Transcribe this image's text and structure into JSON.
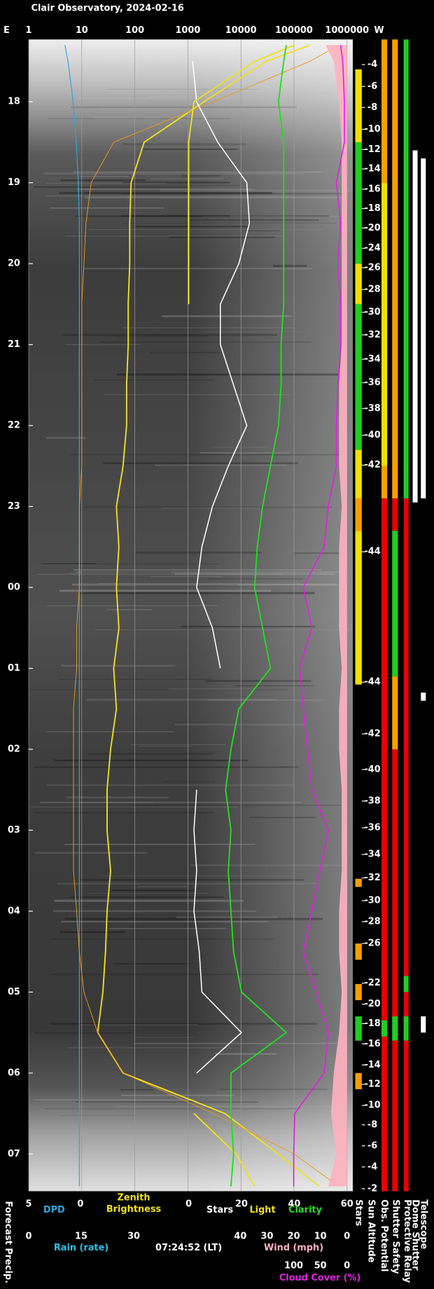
{
  "chart_data": {
    "type": "keogram",
    "title": "Clair Observatory, 2024-02-16",
    "east_label": "E",
    "west_label": "W",
    "timestamp": "07:24:52 (LT)",
    "forecast_precip_label": "Forecast Precip.",
    "ylim": [
      17.23,
      31.46
    ],
    "yticks": [
      18,
      19,
      20,
      21,
      22,
      23,
      {
        "value": 24,
        "label": "00"
      },
      {
        "value": 25,
        "label": "01"
      },
      {
        "value": 26,
        "label": "02"
      },
      {
        "value": 27,
        "label": "03"
      },
      {
        "value": 28,
        "label": "04"
      },
      {
        "value": 29,
        "label": "05"
      },
      {
        "value": 30,
        "label": "06"
      },
      {
        "value": 31,
        "label": "07"
      }
    ],
    "axes": {
      "top": {
        "log": true,
        "xlim": [
          1,
          1000000
        ],
        "xticks": [
          1,
          10,
          100,
          1000,
          10000,
          100000,
          1000000
        ],
        "grid": true
      },
      "dpd": {
        "xlim": [
          5,
          0
        ],
        "xticks": [
          5,
          0
        ]
      },
      "linear": {
        "xlim": [
          0,
          60
        ],
        "xticks": [
          0,
          20,
          40,
          60
        ]
      },
      "rain": {
        "label": "Rain (rate)",
        "color": "#29c0e8",
        "xlim": [
          0,
          30
        ],
        "xticks": [
          0,
          15,
          30
        ]
      },
      "wind": {
        "xlim": [
          40,
          0
        ],
        "xticks": [
          40,
          30,
          20,
          10,
          0
        ]
      },
      "cloud": {
        "xlim": [
          100,
          0
        ],
        "xticks": [
          100,
          50,
          0
        ]
      }
    },
    "x": [
      17.3,
      17.5,
      18,
      18.5,
      19,
      19.5,
      20,
      20.5,
      21,
      21.5,
      22,
      22.5,
      23,
      23.5,
      24,
      24.5,
      25,
      25.5,
      26,
      26.5,
      27,
      27.5,
      28,
      28.5,
      29,
      29.5,
      30,
      30.5,
      31,
      31.4
    ],
    "series": [
      {
        "name": "DPD",
        "color": "#29a8e0",
        "axis": "dpd",
        "width": 1,
        "values": [
          1.5,
          1.2,
          0.7,
          0.4,
          0.2,
          0.1,
          0.1,
          0.1,
          0.1,
          0.1,
          0.1,
          0.1,
          0.1,
          0.1,
          0.1,
          0.1,
          0.1,
          0.1,
          0.1,
          0.1,
          0.1,
          0.1,
          0.1,
          0.1,
          0.1,
          0.1,
          0.1,
          0.1,
          0.1,
          0.1
        ]
      },
      {
        "name": [
          "Zenith",
          "Brightness"
        ],
        "color": "#f0e020",
        "axis": "top",
        "width": 1.6,
        "values": [
          200000,
          30000,
          2000,
          150,
          85,
          80,
          80,
          75,
          75,
          70,
          70,
          60,
          45,
          50,
          45,
          50,
          40,
          45,
          35,
          30,
          30,
          35,
          30,
          28,
          25,
          20,
          60,
          5000,
          50000,
          300000
        ]
      },
      {
        "color": "#e89a20",
        "axis": "top",
        "width": 0.8,
        "values": [
          700000,
          200000,
          3000,
          40,
          15,
          12,
          11,
          10,
          10,
          10,
          10,
          10,
          9,
          9,
          9,
          8,
          8,
          7,
          7,
          7,
          7,
          7,
          8,
          9,
          11,
          20,
          60,
          3000,
          100000,
          700000
        ]
      },
      {
        "name": "Stars",
        "color": "#ffffff",
        "axis": "linear",
        "width": 1.3,
        "values": [
          null,
          1.5,
          3,
          11,
          22,
          23,
          19,
          12,
          12,
          17,
          22,
          15,
          9,
          5,
          3,
          9,
          12,
          null,
          null,
          3,
          2,
          3,
          2,
          4,
          5,
          20,
          3,
          null,
          null,
          null
        ]
      },
      {
        "name": "Light",
        "color": "#f0e020",
        "axis": "linear",
        "width": 1.6,
        "values": [
          40,
          25,
          2,
          0,
          0,
          0,
          0,
          0,
          null,
          null,
          null,
          null,
          null,
          null,
          null,
          null,
          null,
          null,
          null,
          null,
          null,
          null,
          null,
          null,
          null,
          null,
          null,
          2,
          18,
          25
        ]
      },
      {
        "name": "Clarity",
        "color": "#22dd22",
        "axis": "linear",
        "width": 1.6,
        "values": [
          37,
          36,
          34,
          36,
          36,
          36,
          36,
          36,
          35,
          35,
          34,
          31,
          28,
          26,
          25,
          28,
          31,
          19,
          16,
          14,
          16,
          15,
          16,
          17,
          20,
          37,
          16,
          16,
          17,
          16
        ]
      },
      {
        "name": "Wind (mph)",
        "color": "#ffb0c0",
        "axis": "wind",
        "style": "area",
        "values": [
          8,
          5,
          3,
          2,
          2,
          2,
          2,
          2,
          2,
          3,
          3,
          3,
          2,
          3,
          3,
          3,
          2,
          3,
          3,
          2,
          2,
          2,
          3,
          3,
          2,
          3,
          5,
          6,
          4,
          7
        ]
      },
      {
        "name": "Cloud Cover (%)",
        "color": "#e020e0",
        "axis": "cloud",
        "width": 1.4,
        "values": [
          12,
          8,
          5,
          5,
          20,
          12,
          17,
          12,
          12,
          17,
          20,
          20,
          35,
          43,
          82,
          66,
          89,
          82,
          74,
          66,
          35,
          51,
          66,
          82,
          58,
          35,
          43,
          98,
          100,
          100
        ]
      }
    ],
    "sun_altitude": {
      "name": "Sun Altitude",
      "times": [
        17.54,
        17.81,
        18.07,
        18.34,
        18.59,
        18.83,
        19.08,
        19.32,
        19.56,
        19.81,
        20.05,
        20.32,
        20.6,
        20.88,
        21.18,
        21.47,
        21.79,
        22.12,
        22.49,
        23.56,
        25.17,
        25.81,
        26.25,
        26.64,
        26.97,
        27.3,
        27.59,
        27.87,
        28.13,
        28.4,
        28.89,
        29.15,
        29.39,
        29.64,
        29.9,
        30.14,
        30.4,
        30.64,
        30.9,
        31.16,
        31.43
      ],
      "values": [
        -4,
        -6,
        -8,
        -10,
        -12,
        -14,
        -16,
        -18,
        -20,
        -24,
        -26,
        -28,
        -30,
        -32,
        -34,
        -36,
        -38,
        -40,
        -42,
        -44,
        -44,
        -42,
        -40,
        -38,
        -36,
        -34,
        -32,
        -30,
        -28,
        -26,
        -22,
        -20,
        -18,
        -16,
        -14,
        -12,
        -10,
        -8,
        -6,
        -4,
        -2
      ]
    },
    "status": [
      {
        "name": "Stars",
        "segments": [
          {
            "from": 17.6,
            "to": 18.5,
            "color": "#f0e000"
          },
          {
            "from": 18.5,
            "to": 20.0,
            "color": "#22cc22"
          },
          {
            "from": 20.0,
            "to": 20.5,
            "color": "#f0e000"
          },
          {
            "from": 20.5,
            "to": 22.3,
            "color": "#22cc22"
          },
          {
            "from": 22.3,
            "to": 22.9,
            "color": "#f0e000"
          },
          {
            "from": 22.9,
            "to": 23.3,
            "color": "#f5a000"
          },
          {
            "from": 23.3,
            "to": 25.2,
            "color": "#f0e000"
          },
          {
            "from": 27.6,
            "to": 27.7,
            "color": "#f5a000"
          },
          {
            "from": 28.4,
            "to": 28.6,
            "color": "#f5a000"
          },
          {
            "from": 28.9,
            "to": 29.1,
            "color": "#f5a000"
          },
          {
            "from": 29.3,
            "to": 29.6,
            "color": "#22cc22"
          },
          {
            "from": 30.0,
            "to": 30.2,
            "color": "#f5a000"
          }
        ]
      },
      {
        "name": "Obs. Potential",
        "segments": [
          {
            "from": 17.23,
            "to": 19.0,
            "color": "#f5a000"
          },
          {
            "from": 19.0,
            "to": 22.5,
            "color": "#f0e000"
          },
          {
            "from": 22.5,
            "to": 22.9,
            "color": "#f5a000"
          },
          {
            "from": 22.9,
            "to": 29.35,
            "color": "#e80000"
          },
          {
            "from": 29.35,
            "to": 29.55,
            "color": "#22cc22"
          },
          {
            "from": 29.55,
            "to": 31.46,
            "color": "#e80000"
          }
        ]
      },
      {
        "name": "Shutter Safety",
        "segments": [
          {
            "from": 17.23,
            "to": 22.9,
            "color": "#f5a000"
          },
          {
            "from": 22.9,
            "to": 23.3,
            "color": "#e80000"
          },
          {
            "from": 23.3,
            "to": 25.1,
            "color": "#22cc22"
          },
          {
            "from": 25.1,
            "to": 26.0,
            "color": "#f5a000"
          },
          {
            "from": 26.0,
            "to": 29.3,
            "color": "#e80000"
          },
          {
            "from": 29.3,
            "to": 29.6,
            "color": "#22cc22"
          },
          {
            "from": 29.6,
            "to": 31.46,
            "color": "#e80000"
          }
        ]
      },
      {
        "name": "Protective Relay",
        "segments": [
          {
            "from": 17.23,
            "to": 22.9,
            "color": "#22cc22"
          },
          {
            "from": 22.9,
            "to": 28.8,
            "color": "#e80000"
          },
          {
            "from": 28.8,
            "to": 29.0,
            "color": "#22cc22"
          },
          {
            "from": 29.0,
            "to": 29.3,
            "color": "#e80000"
          },
          {
            "from": 29.3,
            "to": 29.6,
            "color": "#22cc22"
          },
          {
            "from": 29.6,
            "to": 31.46,
            "color": "#e80000"
          }
        ]
      },
      {
        "name": "Dome Shutter",
        "segments": [
          {
            "from": 18.6,
            "to": 22.95,
            "color": "#ffffff"
          }
        ]
      },
      {
        "name": "Telescope",
        "segments": [
          {
            "from": 18.7,
            "to": 22.9,
            "color": "#ffffff"
          },
          {
            "from": 25.3,
            "to": 25.4,
            "color": "#ffffff"
          },
          {
            "from": 29.3,
            "to": 29.5,
            "color": "#ffffff"
          }
        ]
      }
    ]
  }
}
